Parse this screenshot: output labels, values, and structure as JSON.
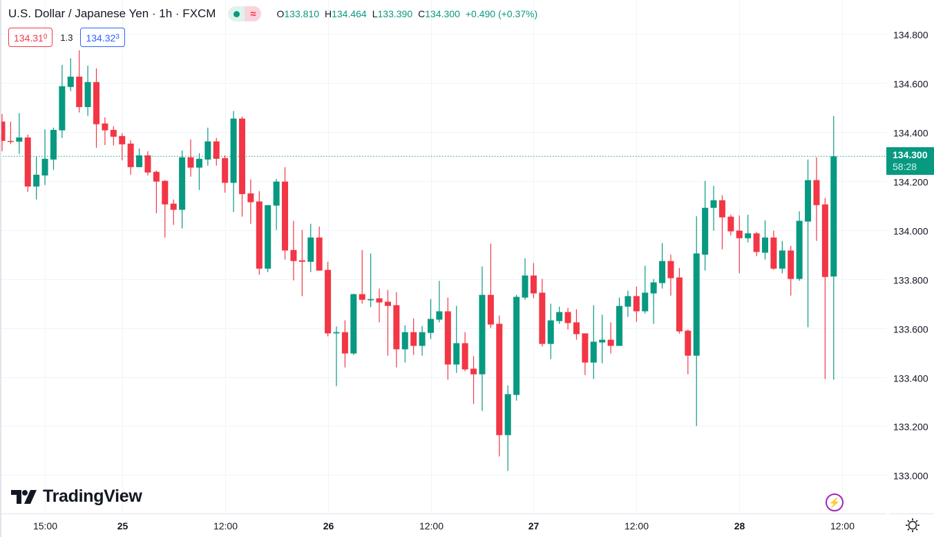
{
  "header": {
    "title": "U.S. Dollar / Japanese Yen · 1h · FXCM",
    "status_icons": [
      "market-open-dot-icon",
      "delayed-data-wave-icon"
    ],
    "ohlc": {
      "o_label": "O",
      "o": "133.810",
      "h_label": "H",
      "h": "134.464",
      "l_label": "L",
      "l": "133.390",
      "c_label": "C",
      "c": "134.300",
      "change": "+0.490 (+0.37%)"
    },
    "sell_price": "134.31",
    "sell_price_sub": "0",
    "spread": "1.3",
    "buy_price": "134.32",
    "buy_price_sub": "3"
  },
  "logo": {
    "text": "TradingView"
  },
  "last_price": {
    "value": "134.300",
    "countdown": "58:28"
  },
  "colors": {
    "up": "#089981",
    "down": "#f23645",
    "grid": "#f0f3fa",
    "text": "#131722"
  },
  "chart_data": {
    "type": "candlestick",
    "title": "U.S. Dollar / Japanese Yen · 1h · FXCM",
    "ylim": [
      132.88,
      134.87
    ],
    "y_ticks": [
      "133.000",
      "133.200",
      "133.400",
      "133.600",
      "133.800",
      "134.000",
      "134.200",
      "134.400",
      "134.600",
      "134.800"
    ],
    "x_ticks": [
      {
        "label": "15:00",
        "index": 5,
        "bold": false
      },
      {
        "label": "25",
        "index": 14,
        "bold": true
      },
      {
        "label": "12:00",
        "index": 26,
        "bold": false
      },
      {
        "label": "26",
        "index": 38,
        "bold": true
      },
      {
        "label": "12:00",
        "index": 50,
        "bold": false
      },
      {
        "label": "27",
        "index": 62,
        "bold": true
      },
      {
        "label": "12:00",
        "index": 74,
        "bold": false
      },
      {
        "label": "28",
        "index": 86,
        "bold": true
      },
      {
        "label": "12:00",
        "index": 98,
        "bold": false
      }
    ],
    "interval": "1h",
    "last_price": 134.3,
    "ohlc": [
      [
        134.442,
        134.473,
        134.321,
        134.363
      ],
      [
        134.363,
        134.442,
        134.35,
        134.36
      ],
      [
        134.36,
        134.476,
        134.31,
        134.377
      ],
      [
        134.377,
        134.389,
        134.155,
        134.177
      ],
      [
        134.177,
        134.3,
        134.124,
        134.225
      ],
      [
        134.222,
        134.41,
        134.183,
        134.29
      ],
      [
        134.287,
        134.417,
        134.245,
        134.408
      ],
      [
        134.406,
        134.673,
        134.375,
        134.586
      ],
      [
        134.583,
        134.7,
        134.566,
        134.625
      ],
      [
        134.625,
        134.732,
        134.479,
        134.501
      ],
      [
        134.501,
        134.67,
        134.465,
        134.603
      ],
      [
        134.603,
        134.659,
        134.335,
        134.431
      ],
      [
        134.434,
        134.459,
        134.346,
        134.406
      ],
      [
        134.408,
        134.423,
        134.344,
        134.38
      ],
      [
        134.383,
        134.394,
        134.284,
        134.349
      ],
      [
        134.352,
        134.366,
        134.225,
        134.256
      ],
      [
        134.256,
        134.332,
        134.256,
        134.304
      ],
      [
        134.304,
        134.321,
        134.222,
        134.234
      ],
      [
        134.237,
        134.242,
        134.068,
        134.197
      ],
      [
        134.2,
        134.203,
        133.969,
        134.104
      ],
      [
        134.107,
        134.124,
        134.02,
        134.082
      ],
      [
        134.082,
        134.324,
        134.006,
        134.296
      ],
      [
        134.296,
        134.369,
        134.217,
        134.254
      ],
      [
        134.254,
        134.313,
        134.163,
        134.29
      ],
      [
        134.287,
        134.417,
        134.262,
        134.361
      ],
      [
        134.361,
        134.375,
        134.262,
        134.29
      ],
      [
        134.293,
        134.304,
        134.152,
        134.192
      ],
      [
        134.192,
        134.485,
        134.073,
        134.454
      ],
      [
        134.454,
        134.462,
        134.054,
        134.146
      ],
      [
        134.149,
        134.206,
        134.025,
        134.113
      ],
      [
        134.116,
        134.158,
        133.817,
        133.842
      ],
      [
        133.842,
        134.101,
        133.828,
        134.101
      ],
      [
        134.099,
        134.208,
        134.0,
        134.197
      ],
      [
        134.197,
        134.256,
        133.879,
        133.916
      ],
      [
        133.918,
        134.037,
        133.794,
        133.873
      ],
      [
        133.876,
        134.0,
        133.73,
        133.87
      ],
      [
        133.87,
        134.025,
        133.828,
        133.969
      ],
      [
        133.969,
        134.014,
        133.834,
        133.834
      ],
      [
        133.837,
        133.87,
        133.566,
        133.578
      ],
      [
        133.578,
        133.606,
        133.363,
        133.583
      ],
      [
        133.583,
        133.631,
        133.439,
        133.496
      ],
      [
        133.496,
        133.74,
        133.49,
        133.738
      ],
      [
        133.738,
        133.918,
        133.699,
        133.715
      ],
      [
        133.713,
        133.904,
        133.685,
        133.718
      ],
      [
        133.721,
        133.761,
        133.623,
        133.704
      ],
      [
        133.707,
        133.755,
        133.487,
        133.69
      ],
      [
        133.693,
        133.746,
        133.439,
        133.513
      ],
      [
        133.513,
        133.611,
        133.459,
        133.583
      ],
      [
        133.583,
        133.639,
        133.49,
        133.527
      ],
      [
        133.527,
        133.608,
        133.487,
        133.583
      ],
      [
        133.58,
        133.718,
        133.555,
        133.637
      ],
      [
        133.634,
        133.792,
        133.623,
        133.668
      ],
      [
        133.668,
        133.724,
        133.389,
        133.451
      ],
      [
        133.451,
        133.69,
        133.417,
        133.538
      ],
      [
        133.538,
        133.583,
        133.423,
        133.431
      ],
      [
        133.434,
        133.485,
        133.29,
        133.411
      ],
      [
        133.411,
        133.851,
        133.262,
        133.735
      ],
      [
        133.735,
        133.944,
        133.6,
        133.614
      ],
      [
        133.617,
        133.651,
        133.076,
        133.163
      ],
      [
        133.163,
        133.366,
        133.017,
        133.33
      ],
      [
        133.327,
        133.735,
        133.304,
        133.727
      ],
      [
        133.724,
        133.884,
        133.715,
        133.814
      ],
      [
        133.814,
        133.865,
        133.721,
        133.741
      ],
      [
        133.744,
        133.8,
        133.524,
        133.535
      ],
      [
        133.535,
        133.699,
        133.473,
        133.631
      ],
      [
        133.628,
        133.687,
        133.617,
        133.665
      ],
      [
        133.665,
        133.682,
        133.594,
        133.62
      ],
      [
        133.623,
        133.676,
        133.552,
        133.575
      ],
      [
        133.578,
        133.578,
        133.408,
        133.459
      ],
      [
        133.459,
        133.693,
        133.392,
        133.544
      ],
      [
        133.541,
        133.654,
        133.456,
        133.552
      ],
      [
        133.552,
        133.623,
        133.496,
        133.527
      ],
      [
        133.527,
        133.724,
        133.527,
        133.69
      ],
      [
        133.687,
        133.752,
        133.645,
        133.73
      ],
      [
        133.73,
        133.769,
        133.625,
        133.668
      ],
      [
        133.668,
        133.854,
        133.659,
        133.744
      ],
      [
        133.741,
        133.8,
        133.617,
        133.786
      ],
      [
        133.783,
        133.946,
        133.761,
        133.873
      ],
      [
        133.873,
        133.899,
        133.732,
        133.803
      ],
      [
        133.806,
        133.845,
        133.577,
        133.586
      ],
      [
        133.589,
        133.594,
        133.411,
        133.487
      ],
      [
        133.487,
        134.056,
        133.2,
        133.904
      ],
      [
        133.899,
        134.2,
        133.834,
        134.09
      ],
      [
        134.09,
        134.18,
        133.997,
        134.121
      ],
      [
        134.121,
        134.141,
        133.921,
        134.051
      ],
      [
        134.054,
        134.062,
        133.977,
        133.994
      ],
      [
        133.997,
        134.059,
        133.823,
        133.966
      ],
      [
        133.966,
        134.062,
        133.949,
        133.986
      ],
      [
        133.986,
        133.992,
        133.893,
        133.91
      ],
      [
        133.907,
        134.039,
        133.879,
        133.969
      ],
      [
        133.969,
        133.997,
        133.837,
        133.842
      ],
      [
        133.842,
        133.955,
        133.823,
        133.916
      ],
      [
        133.916,
        133.935,
        133.732,
        133.8
      ],
      [
        133.8,
        134.076,
        133.792,
        134.037
      ],
      [
        134.034,
        134.287,
        133.603,
        134.203
      ],
      [
        134.203,
        134.296,
        133.955,
        134.101
      ],
      [
        134.104,
        134.13,
        133.392,
        133.808
      ],
      [
        133.81,
        134.464,
        133.39,
        134.3
      ]
    ]
  }
}
